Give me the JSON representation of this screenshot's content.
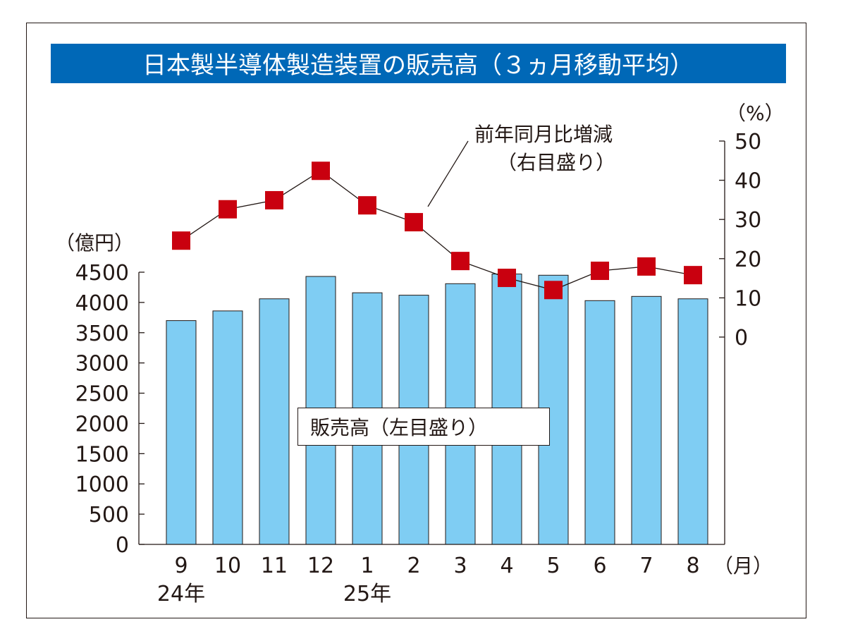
{
  "chart_data": {
    "type": "bar",
    "title": "日本製半導体製造装置の販売高（３ヵ月移動平均）",
    "categories": [
      "9",
      "10",
      "11",
      "12",
      "1",
      "2",
      "3",
      "4",
      "5",
      "6",
      "7",
      "8"
    ],
    "year_labels": [
      {
        "index": 0,
        "label": "24年"
      },
      {
        "index": 4,
        "label": "25年"
      }
    ],
    "x_unit": "（月）",
    "left_axis": {
      "unit": "（億円）",
      "ylim": [
        0,
        4500
      ],
      "ticks": [
        0,
        500,
        1000,
        1500,
        2000,
        2500,
        3000,
        3500,
        4000,
        4500
      ]
    },
    "right_axis": {
      "unit": "（%）",
      "ylim": [
        0,
        50
      ],
      "ticks": [
        0,
        10,
        20,
        30,
        40,
        50
      ]
    },
    "series": [
      {
        "name": "販売高（左目盛り）",
        "type": "bar",
        "axis": "left",
        "color": "#7fcdf3",
        "values": [
          3700,
          3860,
          4060,
          4430,
          4160,
          4120,
          4310,
          4470,
          4450,
          4030,
          4100,
          4060
        ]
      },
      {
        "name": "前年同月比増減",
        "name2": "（右目盛り）",
        "type": "line-marker",
        "axis": "right",
        "color": "#c9000f",
        "values": [
          24.6,
          32.6,
          34.9,
          42.4,
          33.6,
          29.3,
          19.4,
          15.1,
          12.0,
          16.9,
          18.0,
          15.8
        ]
      }
    ],
    "title_bg": "#0068b7"
  }
}
